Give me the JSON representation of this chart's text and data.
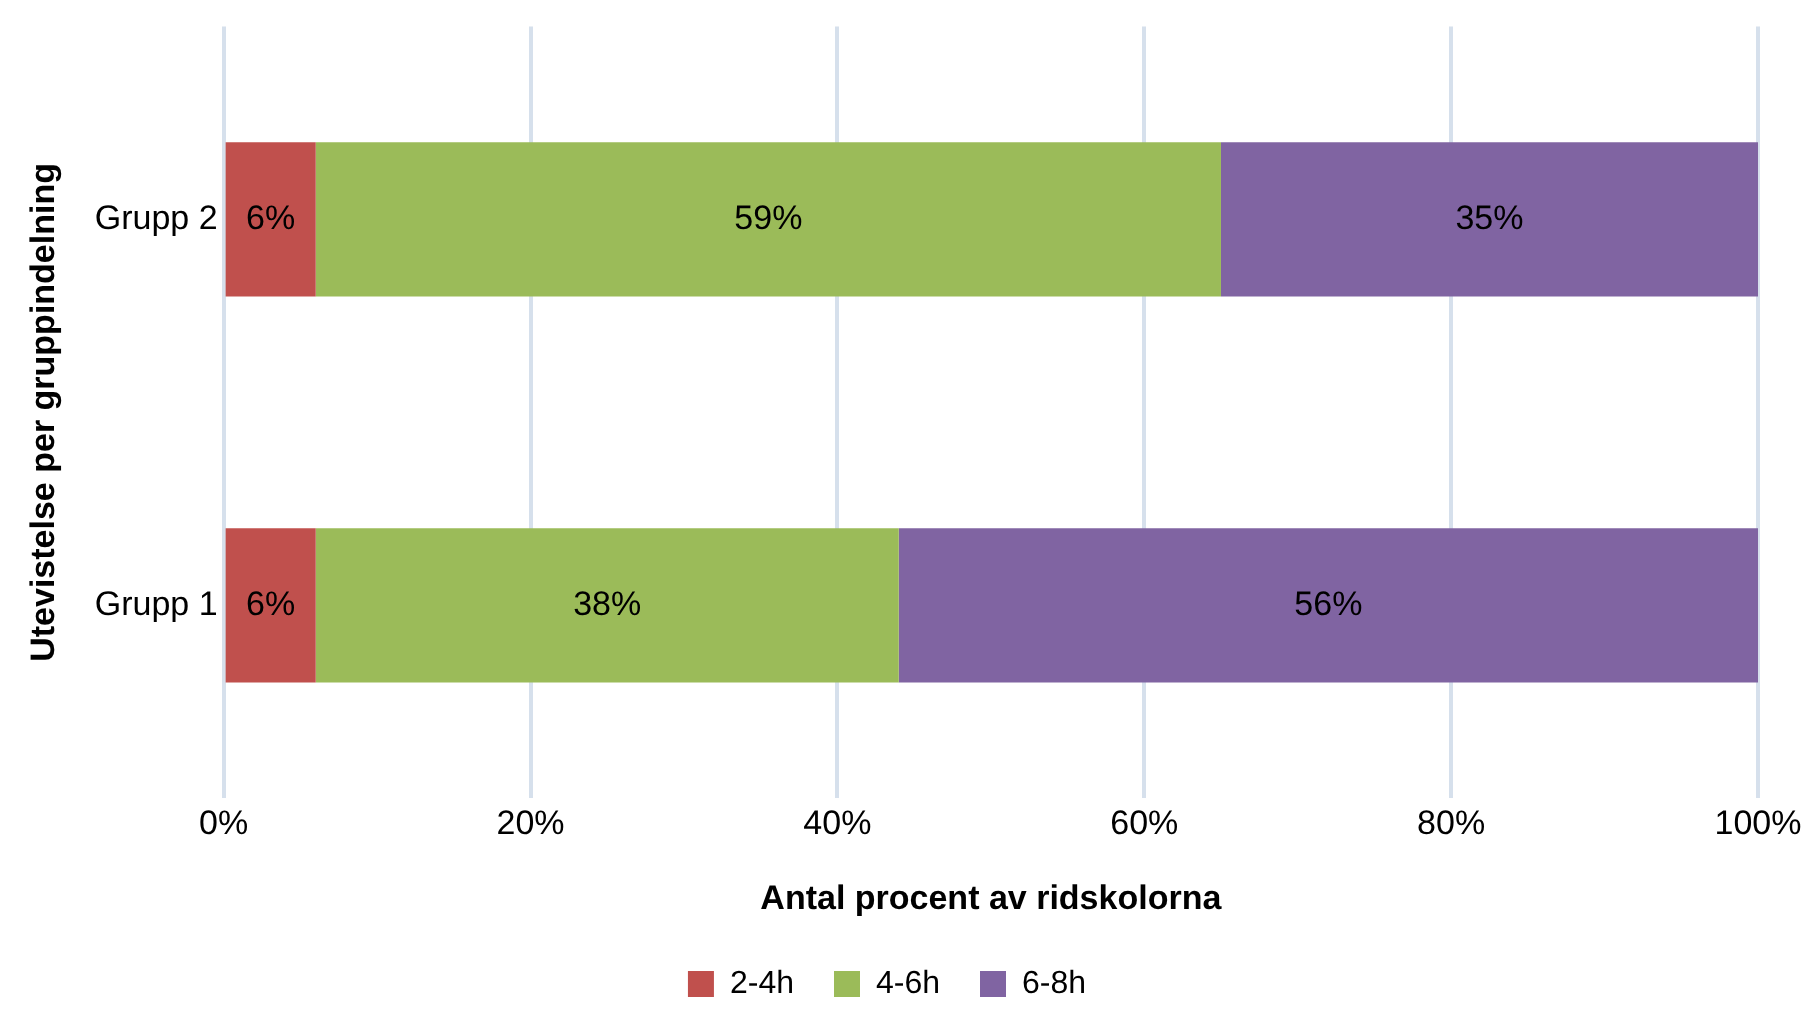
{
  "chart_data": {
    "type": "bar",
    "orientation": "horizontal",
    "stacked": true,
    "xlabel": "Antal procent av ridskolorna",
    "ylabel": "Utevistelse per gruppindelning",
    "categories": [
      "Grupp 2",
      "Grupp 1"
    ],
    "series": [
      {
        "name": "2-4h",
        "color": "#c0504d",
        "values": [
          6,
          6
        ],
        "value_labels": [
          "6%",
          "6%"
        ]
      },
      {
        "name": "4-6h",
        "color": "#9bbb59",
        "values": [
          59,
          38
        ],
        "value_labels": [
          "59%",
          "38%"
        ]
      },
      {
        "name": "6-8h",
        "color": "#8064a2",
        "values": [
          35,
          56
        ],
        "value_labels": [
          "35%",
          "56%"
        ]
      }
    ],
    "xlim": [
      0,
      100
    ],
    "xticks": [
      {
        "value": 0,
        "label": "0%"
      },
      {
        "value": 20,
        "label": "20%"
      },
      {
        "value": 40,
        "label": "40%"
      },
      {
        "value": 60,
        "label": "60%"
      },
      {
        "value": 80,
        "label": "80%"
      },
      {
        "value": 100,
        "label": "100%"
      }
    ],
    "grid": "x",
    "legend": "bottom"
  }
}
